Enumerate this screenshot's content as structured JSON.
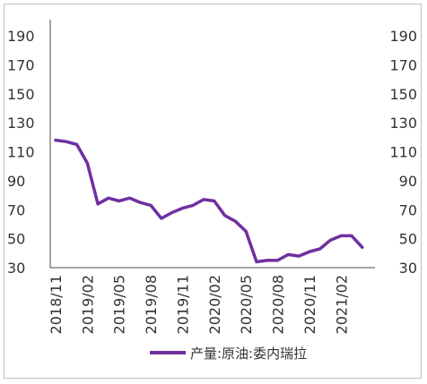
{
  "chart_data": {
    "type": "line",
    "y_axis_left": {
      "ylim": [
        30,
        200
      ],
      "ticks": [
        30,
        50,
        70,
        90,
        110,
        130,
        150,
        170,
        190
      ]
    },
    "y_axis_right": {
      "ylim": [
        30,
        200
      ],
      "ticks": [
        30,
        50,
        70,
        90,
        110,
        130,
        150,
        170,
        190
      ]
    },
    "x_tick_labels": [
      "2018/11",
      "2019/02",
      "2019/05",
      "2019/08",
      "2019/11",
      "2020/02",
      "2020/05",
      "2020/08",
      "2020/11",
      "2021/02"
    ],
    "x": [
      "2018/11",
      "2018/12",
      "2019/01",
      "2019/02",
      "2019/03",
      "2019/04",
      "2019/05",
      "2019/06",
      "2019/07",
      "2019/08",
      "2019/09",
      "2019/10",
      "2019/11",
      "2019/12",
      "2020/01",
      "2020/02",
      "2020/03",
      "2020/04",
      "2020/05",
      "2020/06",
      "2020/07",
      "2020/08",
      "2020/09",
      "2020/10",
      "2020/11",
      "2020/12",
      "2021/01",
      "2021/02",
      "2021/03",
      "2021/04",
      "2021/05"
    ],
    "series": [
      {
        "name": "产量:原油:委内瑞拉",
        "color": "#7030a0",
        "values": [
          118,
          117,
          115,
          102,
          74,
          78,
          76,
          78,
          75,
          73,
          64,
          68,
          71,
          73,
          77,
          76,
          66,
          62,
          55,
          34,
          35,
          35,
          39,
          38,
          41,
          43,
          49,
          52,
          52,
          44,
          null
        ]
      }
    ],
    "grid": false,
    "legend_position": "bottom-center"
  }
}
